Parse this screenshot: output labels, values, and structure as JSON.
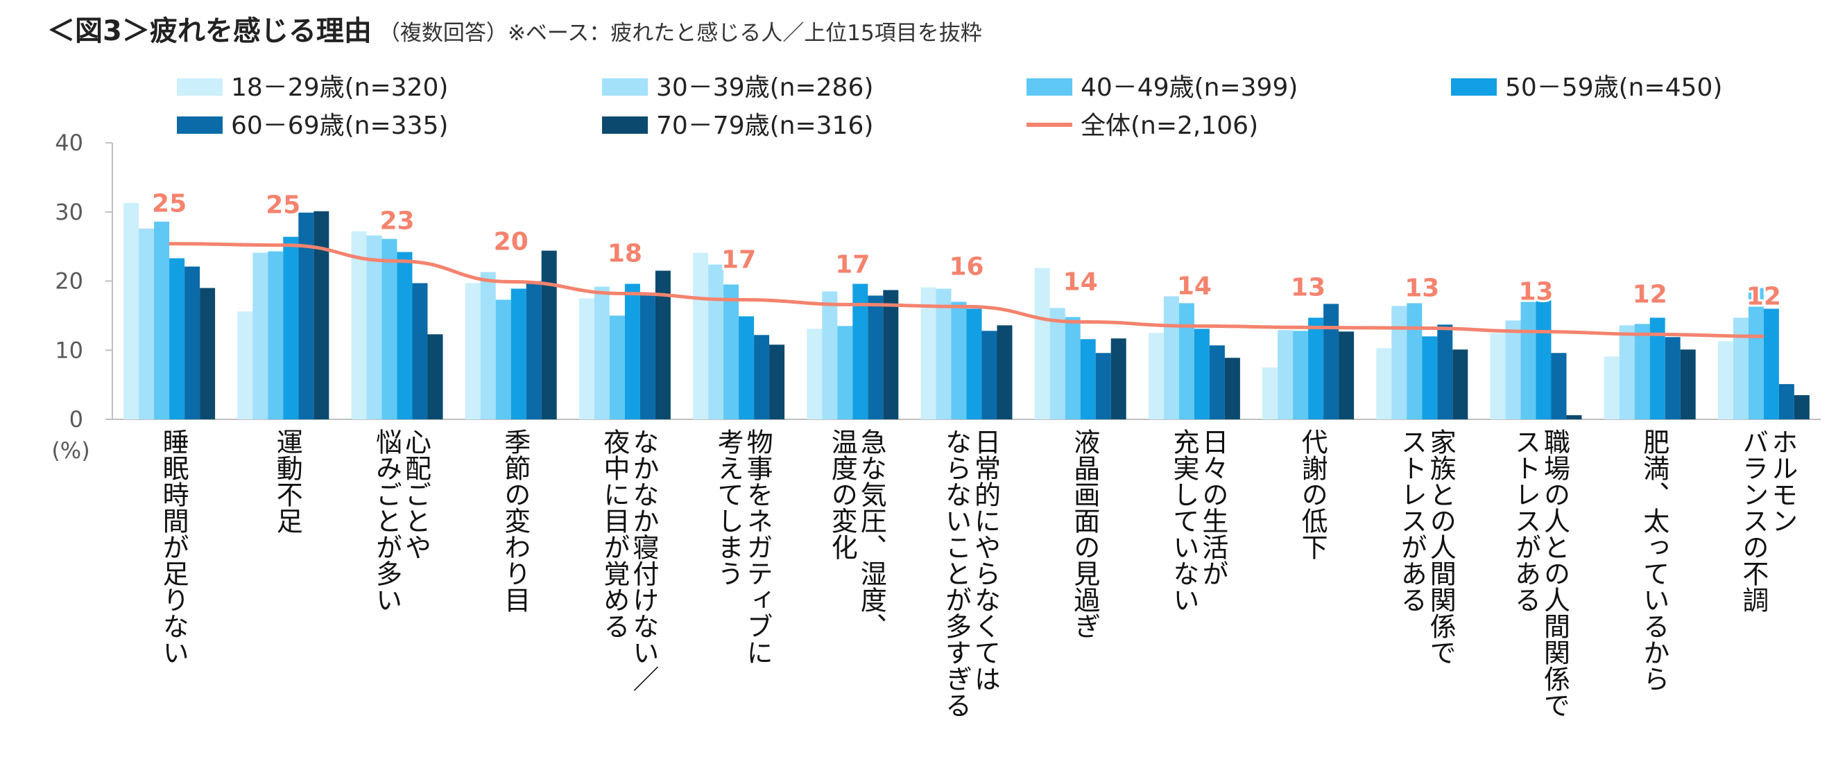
{
  "title": {
    "main": "＜図3＞疲れを感じる理由",
    "sub": "（複数回答）※ベース：疲れたと感じる人／上位15項目を抜粋"
  },
  "chart_data": {
    "type": "bar",
    "ylim": [
      0,
      40
    ],
    "yticks": [
      0,
      10,
      20,
      30,
      40
    ],
    "ylabel": "(%)",
    "grid": false,
    "legend_position": "top",
    "categories": [
      "睡眠時間が足りない",
      "運動不足",
      "心配ごとや悩みごとが多い",
      "季節の変わり目",
      "なかなか寝付けない／夜中に目が覚める",
      "物事をネガティブに考えてしまう",
      "急な気圧、湿度、温度の変化",
      "日常的にやらなくてはならないことが多すぎる",
      "液晶画面の見過ぎ",
      "日々の生活が充実していない",
      "代謝の低下",
      "家族との人間関係でストレスがある",
      "職場の人との人間関係でストレスがある",
      "肥満、太っているから",
      "ホルモンバランスの不調"
    ],
    "category_lines": [
      [
        "睡眠時間が足りない"
      ],
      [
        "運動不足"
      ],
      [
        "心配ごとや",
        "悩みごとが多い"
      ],
      [
        "季節の変わり目"
      ],
      [
        "なかなか寝付けない／",
        "夜中に目が覚める"
      ],
      [
        "物事をネガティブに",
        "考えてしまう"
      ],
      [
        "急な気圧、湿度、",
        "温度の変化"
      ],
      [
        "日常的にやらなくては",
        "ならないことが多すぎる"
      ],
      [
        "液晶画面の見過ぎ"
      ],
      [
        "日々の生活が",
        "充実していない"
      ],
      [
        "代謝の低下"
      ],
      [
        "家族との人間関係で",
        "ストレスがある"
      ],
      [
        "職場の人との人間関係で",
        "ストレスがある"
      ],
      [
        "肥満、太っているから"
      ],
      [
        "ホルモン",
        "バランスの不調"
      ]
    ],
    "series": [
      {
        "name": "18－29歳(n=320)",
        "color": "#CCEFFC",
        "values": [
          31.3,
          15.6,
          27.2,
          19.7,
          17.5,
          24.1,
          13.1,
          19.1,
          21.9,
          12.5,
          7.5,
          10.3,
          12.5,
          9.1,
          11.3
        ]
      },
      {
        "name": "30－39歳(n=286)",
        "color": "#A3E1FA",
        "values": [
          27.6,
          24.1,
          26.6,
          21.3,
          19.2,
          22.4,
          18.5,
          18.9,
          16.1,
          17.8,
          12.9,
          16.4,
          14.3,
          13.6,
          14.7
        ]
      },
      {
        "name": "40－49歳(n=399)",
        "color": "#5FC8F5",
        "values": [
          28.6,
          24.3,
          26.1,
          17.3,
          15.0,
          19.5,
          13.5,
          17.0,
          14.8,
          16.8,
          12.8,
          16.8,
          18.0,
          13.8,
          19.0
        ]
      },
      {
        "name": "50－59歳(n=450)",
        "color": "#139FE3",
        "values": [
          23.3,
          26.4,
          24.2,
          18.9,
          19.6,
          14.9,
          19.6,
          16.0,
          11.6,
          13.1,
          14.7,
          12.0,
          17.8,
          14.7,
          16.0
        ]
      },
      {
        "name": "60－69歳(n=335)",
        "color": "#0A6BA8",
        "values": [
          22.1,
          29.9,
          19.7,
          20.0,
          18.2,
          12.2,
          17.9,
          12.8,
          9.6,
          10.7,
          16.7,
          13.7,
          9.6,
          11.9,
          5.1
        ]
      },
      {
        "name": "70－79歳(n=316)",
        "color": "#0B4A6E",
        "values": [
          19.0,
          30.1,
          12.3,
          24.4,
          21.5,
          10.8,
          18.7,
          13.6,
          11.7,
          8.9,
          12.7,
          10.1,
          0.6,
          10.1,
          3.5
        ]
      },
      {
        "name": "全体(n=2,106)",
        "color": "#F4836E",
        "type": "line",
        "values": [
          25.4,
          25.2,
          22.9,
          19.9,
          18.2,
          17.3,
          16.6,
          16.3,
          14.1,
          13.5,
          13.3,
          13.2,
          12.7,
          12.3,
          12.0
        ],
        "labels": [
          "25",
          "25",
          "23",
          "20",
          "18",
          "17",
          "17",
          "16",
          "14",
          "14",
          "13",
          "13",
          "13",
          "12",
          "12"
        ]
      }
    ]
  }
}
